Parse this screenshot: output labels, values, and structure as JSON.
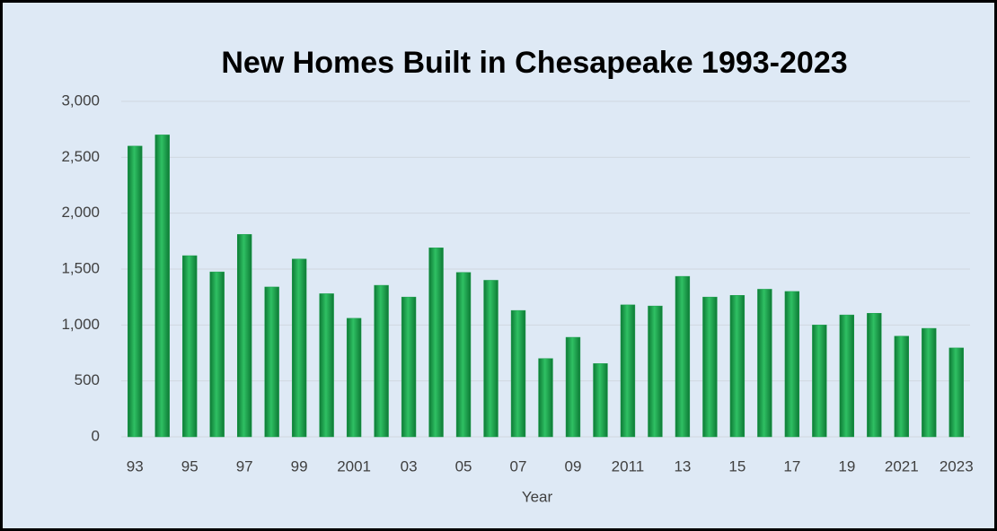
{
  "chart_data": {
    "type": "bar",
    "title": "New Homes Built in Chesapeake 1993-2023",
    "x_label": "Year",
    "categories": [
      "93",
      null,
      "95",
      null,
      "97",
      null,
      "99",
      null,
      "2001",
      null,
      "03",
      null,
      "05",
      null,
      "07",
      null,
      "09",
      null,
      "2011",
      null,
      "13",
      null,
      "15",
      null,
      "17",
      null,
      "19",
      null,
      "2021",
      null,
      "2023"
    ],
    "values": [
      2600,
      2700,
      1620,
      1475,
      1810,
      1340,
      1590,
      1280,
      1060,
      1355,
      1250,
      1690,
      1470,
      1400,
      1130,
      700,
      890,
      655,
      1180,
      1170,
      1435,
      1250,
      1265,
      1320,
      1300,
      1000,
      1090,
      1105,
      900,
      970,
      795
    ],
    "color": "#1a9e4a",
    "ylim": [
      0,
      3000
    ],
    "yticks": [
      0,
      500,
      {
        "value": 1000,
        "label": "1,000"
      },
      {
        "value": 1500,
        "label": "1,500"
      },
      {
        "value": 2000,
        "label": "2,000"
      },
      {
        "value": 2500,
        "label": "2,500"
      },
      {
        "value": 3000,
        "label": "3,000"
      }
    ],
    "grid": true
  }
}
